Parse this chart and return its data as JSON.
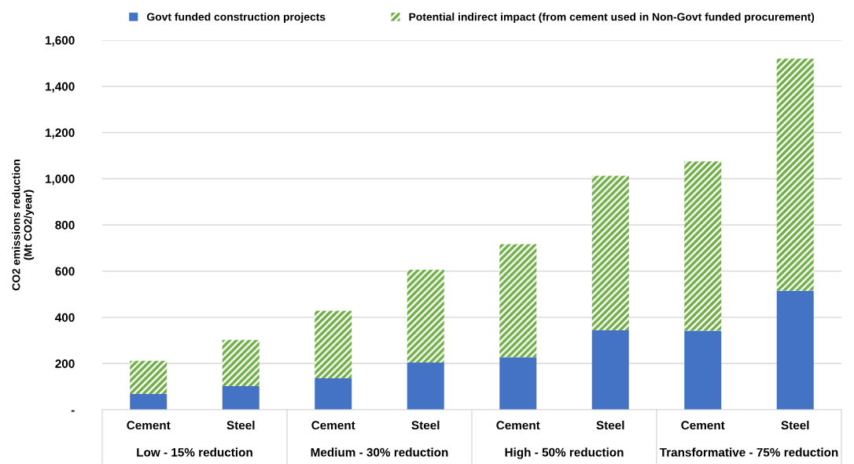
{
  "chart_data": {
    "type": "bar",
    "stacked": true,
    "ylabel": "CO2 emissions reduction\n(Mt CO2/year)",
    "categories": [
      "Cement",
      "Steel",
      "Cement",
      "Steel",
      "Cement",
      "Steel",
      "Cement",
      "Steel"
    ],
    "annotations": [
      "Low - 15% reduction",
      "Medium - 30% reduction",
      "High - 50% reduction",
      "Transformative - 75% reduction"
    ],
    "series": [
      {
        "name": "Govt funded construction projects",
        "color": "#4472c4",
        "values": [
          68,
          102,
          136,
          204,
          227,
          344,
          342,
          515
        ]
      },
      {
        "name": "Potential indirect impact (from cement used in Non-Govt funded procurement)",
        "color": "#70ad47",
        "values": [
          144,
          200,
          292,
          402,
          490,
          669,
          733,
          1005
        ]
      }
    ],
    "ylim": [
      0,
      1600
    ],
    "yticks": [
      {
        "value": 0,
        "label": "-"
      },
      {
        "value": 200,
        "label": "200"
      },
      {
        "value": 400,
        "label": "400"
      },
      {
        "value": 600,
        "label": "600"
      },
      {
        "value": 800,
        "label": "800"
      },
      {
        "value": 1000,
        "label": "1,000"
      },
      {
        "value": 1200,
        "label": "1,200"
      },
      {
        "value": 1400,
        "label": "1,400"
      },
      {
        "value": 1600,
        "label": "1,600"
      }
    ],
    "grid": "y",
    "legend": "top"
  }
}
